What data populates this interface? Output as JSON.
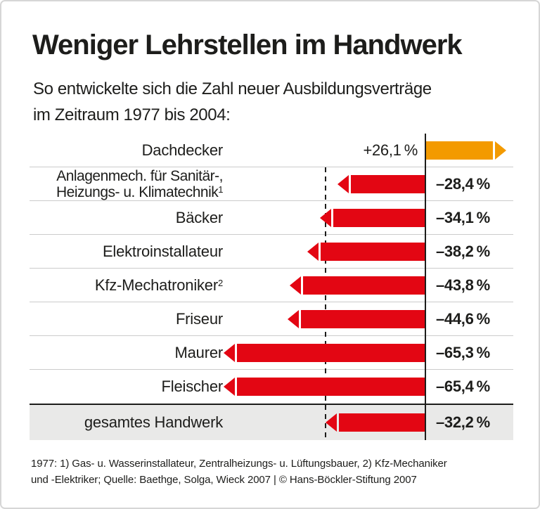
{
  "header": {
    "title": "Weniger Lehrstellen im Handwerk",
    "subtitle_line1": "So entwickelte sich die Zahl neuer Ausbildungsverträge",
    "subtitle_line2": "im Zeitraum 1977 bis 2004:"
  },
  "chart_data": {
    "type": "bar",
    "orientation": "horizontal",
    "title": "Weniger Lehrstellen im Handwerk",
    "unit": "%",
    "xlim": [
      -70,
      30
    ],
    "grid": false,
    "categories": [
      "Dachdecker",
      "Anlagenmech. für Sanitär-, Heizungs- u. Klimatechnik",
      "Bäcker",
      "Elektroinstallateur",
      "Kfz-Mechatroniker",
      "Friseur",
      "Maurer",
      "Fleischer",
      "gesamtes Handwerk"
    ],
    "values": [
      26.1,
      -28.4,
      -34.1,
      -38.2,
      -43.8,
      -44.6,
      -65.3,
      -65.4,
      -32.2
    ],
    "rows": [
      {
        "label_lines": [
          "Dachdecker"
        ],
        "sup": "",
        "value": 26.1,
        "display": "+26,1 %",
        "kind": "positive"
      },
      {
        "label_lines": [
          "Anlagenmech. für Sanitär-,",
          "Heizungs- u. Klimatechnik"
        ],
        "sup": "1",
        "value": -28.4,
        "display": "–28,4 %",
        "kind": "negative"
      },
      {
        "label_lines": [
          "Bäcker"
        ],
        "sup": "",
        "value": -34.1,
        "display": "–34,1 %",
        "kind": "negative"
      },
      {
        "label_lines": [
          "Elektroinstallateur"
        ],
        "sup": "",
        "value": -38.2,
        "display": "–38,2 %",
        "kind": "negative"
      },
      {
        "label_lines": [
          "Kfz-Mechatroniker"
        ],
        "sup": "2",
        "value": -43.8,
        "display": "–43,8 %",
        "kind": "negative"
      },
      {
        "label_lines": [
          "Friseur"
        ],
        "sup": "",
        "value": -44.6,
        "display": "–44,6 %",
        "kind": "negative"
      },
      {
        "label_lines": [
          "Maurer"
        ],
        "sup": "",
        "value": -65.3,
        "display": "–65,3 %",
        "kind": "negative"
      },
      {
        "label_lines": [
          "Fleischer"
        ],
        "sup": "",
        "value": -65.4,
        "display": "–65,4 %",
        "kind": "negative"
      },
      {
        "label_lines": [
          "gesamtes Handwerk"
        ],
        "sup": "",
        "value": -32.2,
        "display": "–32,2 %",
        "kind": "summary"
      }
    ],
    "reference_line": {
      "style": "dashed",
      "at_value": -32.2
    },
    "colors": {
      "positive": "#F39A00",
      "negative": "#E30613",
      "summary_row_bg": "#E9E9E8",
      "axis": "#1D1D1B"
    },
    "legend": null
  },
  "footer": {
    "line1": "1977: 1) Gas- u. Wasserinstallateur, Zentralheizungs- u. Lüftungsbauer, 2) Kfz-Mechaniker",
    "line2": "und -Elektriker; Quelle: Baethge, Solga, Wieck 2007 | © Hans-Böckler-Stiftung 2007"
  }
}
